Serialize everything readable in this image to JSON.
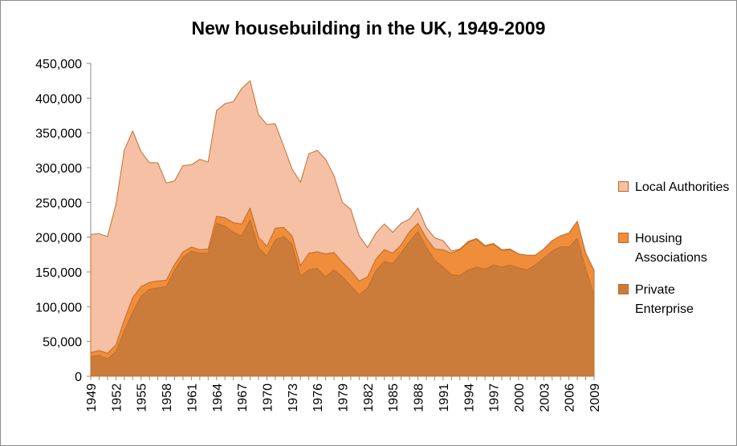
{
  "chart_data": {
    "type": "area",
    "stacked": true,
    "title": "New housebuilding in the UK, 1949-2009",
    "xlabel": "",
    "ylabel": "",
    "ylim": [
      0,
      450000
    ],
    "yticks": [
      0,
      50000,
      100000,
      150000,
      200000,
      250000,
      300000,
      350000,
      400000,
      450000
    ],
    "ytick_labels": [
      "0",
      "50,000",
      "100,000",
      "150,000",
      "200,000",
      "250,000",
      "300,000",
      "350,000",
      "400,000",
      "450,000"
    ],
    "x_tick_labels": [
      "1949",
      "1952",
      "1955",
      "1958",
      "1961",
      "1964",
      "1967",
      "1970",
      "1973",
      "1976",
      "1979",
      "1982",
      "1985",
      "1988",
      "1991",
      "1994",
      "1997",
      "2000",
      "2003",
      "2006",
      "2009"
    ],
    "legend_position": "right",
    "x": [
      1949,
      1950,
      1951,
      1952,
      1953,
      1954,
      1955,
      1956,
      1957,
      1958,
      1959,
      1960,
      1961,
      1962,
      1963,
      1964,
      1965,
      1966,
      1967,
      1968,
      1969,
      1970,
      1971,
      1972,
      1973,
      1974,
      1975,
      1976,
      1977,
      1978,
      1979,
      1980,
      1981,
      1982,
      1983,
      1984,
      1985,
      1986,
      1987,
      1988,
      1989,
      1990,
      1991,
      1992,
      1993,
      1994,
      1995,
      1996,
      1997,
      1998,
      1999,
      2000,
      2001,
      2002,
      2003,
      2004,
      2005,
      2006,
      2007,
      2008,
      2009
    ],
    "series": [
      {
        "name": "Private Enterprise",
        "color": "#cc7c3a",
        "values": [
          28000,
          30000,
          25000,
          35000,
          65000,
          92000,
          115000,
          125000,
          127000,
          129000,
          152000,
          171000,
          180000,
          177000,
          177000,
          220000,
          216000,
          207000,
          202000,
          225000,
          185000,
          173000,
          196000,
          201000,
          190000,
          144000,
          153000,
          155000,
          143000,
          153000,
          143000,
          130000,
          117000,
          127000,
          152000,
          165000,
          162000,
          177000,
          194000,
          208000,
          186000,
          167000,
          157000,
          146000,
          145000,
          153000,
          157000,
          154000,
          160000,
          157000,
          160000,
          156000,
          153000,
          160000,
          170000,
          180000,
          186000,
          186000,
          198000,
          155000,
          117000
        ]
      },
      {
        "name": "Housing Associations",
        "color": "#f08d3a",
        "values": [
          6000,
          7000,
          8000,
          10000,
          16000,
          21000,
          14000,
          10000,
          10000,
          9000,
          9000,
          8000,
          6000,
          5000,
          6000,
          10000,
          12000,
          14000,
          17000,
          17000,
          15000,
          14000,
          17000,
          13000,
          12000,
          15000,
          24000,
          24000,
          33000,
          25000,
          21000,
          22000,
          20000,
          16000,
          17000,
          17000,
          15000,
          12000,
          14000,
          12000,
          13000,
          16000,
          25000,
          31000,
          37000,
          40000,
          40000,
          33000,
          30000,
          24000,
          22000,
          20000,
          21000,
          14000,
          13000,
          15000,
          16000,
          20000,
          25000,
          22000,
          35000
        ]
      },
      {
        "name": "Local Authorities",
        "color": "#f6c0a5",
        "values": [
          170000,
          168000,
          168000,
          202000,
          244000,
          240000,
          194000,
          172000,
          170000,
          140000,
          120000,
          124000,
          118000,
          130000,
          125000,
          152000,
          164000,
          174000,
          195000,
          183000,
          176000,
          175000,
          150000,
          117000,
          96000,
          120000,
          143000,
          146000,
          136000,
          110000,
          86000,
          88000,
          65000,
          42000,
          37000,
          37000,
          30000,
          31000,
          18000,
          22000,
          15000,
          16000,
          13000,
          3000,
          1000,
          1000,
          1000,
          1000,
          1000,
          1000,
          1000,
          0,
          0,
          0,
          0,
          0,
          0,
          0,
          0,
          0,
          0
        ]
      }
    ],
    "legend": [
      "Local Authorities",
      "Housing Associations",
      "Private Enterprise"
    ]
  }
}
